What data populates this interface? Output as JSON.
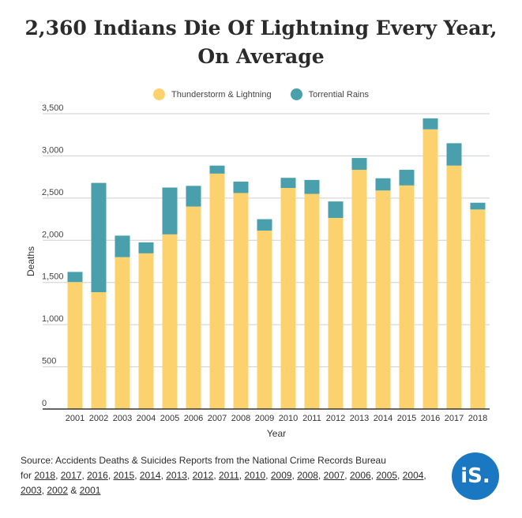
{
  "title_line1": "2,360 Indians Die Of Lightning Every Year,",
  "title_line2": "On Average",
  "source": {
    "prefix": "Source: Accidents Deaths & Suicides Reports from the National Crime Records Bureau",
    "for_text": "for",
    "links": [
      "2018",
      "2017",
      "2016",
      "2015",
      "2014",
      "2013",
      "2012",
      "2011",
      "2010",
      "2009",
      "2008",
      "2007",
      "2006",
      "2005",
      "2004",
      "2003",
      "2002",
      "2001"
    ],
    "and_text": "&"
  },
  "logo_text": "iS.",
  "colors": {
    "thunderstorm": "#fbd26e",
    "torrential": "#4a9fac",
    "logo": "#1a78c2"
  },
  "chart_data": {
    "type": "bar",
    "stacked": true,
    "xlabel": "Year",
    "ylabel": "Deaths",
    "ylim": [
      0,
      3500
    ],
    "yticks": [
      0,
      500,
      1000,
      1500,
      2000,
      2500,
      3000,
      3500
    ],
    "ytick_labels": [
      "0",
      "500",
      "1,000",
      "1,500",
      "2,000",
      "2,500",
      "3,000",
      "3,500"
    ],
    "grid": true,
    "legend_position": "top-center",
    "categories": [
      "2001",
      "2002",
      "2003",
      "2004",
      "2005",
      "2006",
      "2007",
      "2008",
      "2009",
      "2010",
      "2011",
      "2012",
      "2013",
      "2014",
      "2015",
      "2016",
      "2017",
      "2018"
    ],
    "series": [
      {
        "name": "Thunderstorm & Lightning",
        "color": "#fbd26e",
        "values": [
          1505,
          1385,
          1800,
          1845,
          2070,
          2400,
          2790,
          2560,
          2115,
          2620,
          2550,
          2265,
          2835,
          2590,
          2650,
          3315,
          2885,
          2365
        ]
      },
      {
        "name": "Torrential Rains",
        "color": "#4a9fac",
        "values": [
          120,
          1295,
          255,
          130,
          555,
          245,
          95,
          135,
          135,
          120,
          165,
          195,
          140,
          145,
          185,
          130,
          265,
          80
        ]
      }
    ]
  }
}
